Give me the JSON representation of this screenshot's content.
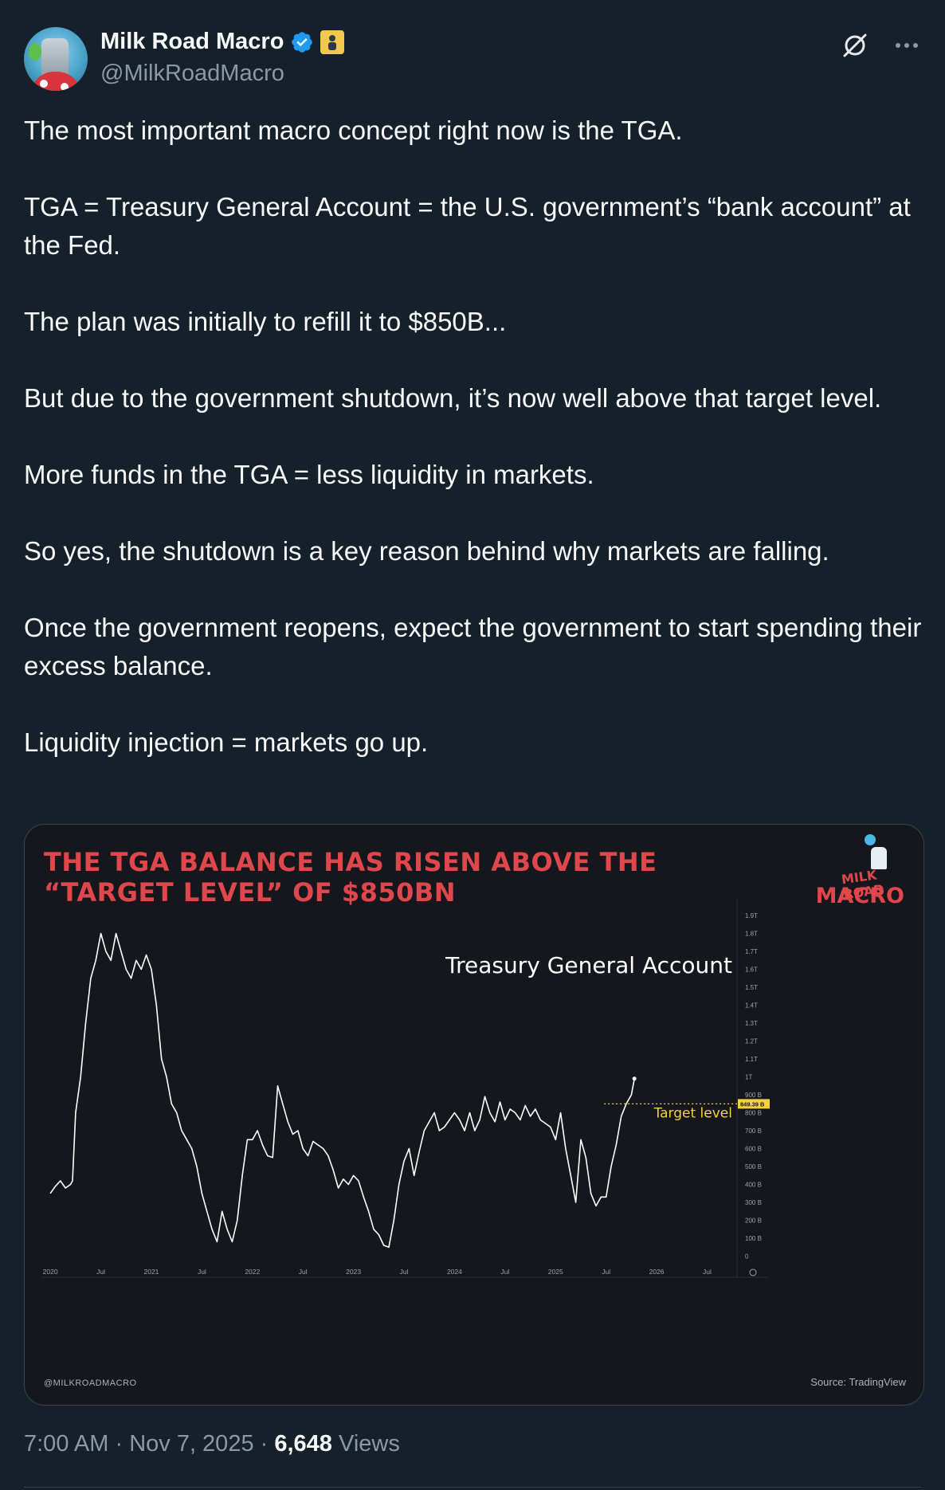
{
  "author": {
    "name": "Milk Road Macro",
    "handle": "@MilkRoadMacro"
  },
  "icons": {
    "verified": "verified-badge-icon",
    "affiliate": "affiliate-badge-icon",
    "grok": "grok-icon",
    "more": "more-icon"
  },
  "tweet": {
    "paragraphs": [
      "The most important macro concept right now is the TGA.",
      "TGA = Treasury General Account = the U.S. government’s “bank account” at the Fed.",
      "The plan was initially to refill it to $850B...",
      "But due to the government shutdown, it’s now well above that target level.",
      "More funds in the TGA = less liquidity in markets.",
      "So yes, the shutdown is a key reason behind why markets are falling.",
      "Once the government reopens, expect the government to start spending their excess balance.",
      "Liquidity injection = markets go up."
    ]
  },
  "media": {
    "logo_line1": "MILK ROAD",
    "logo_line2": "MACRO",
    "watermark": "@MILKROADMACRO",
    "source": "Source: TradingView"
  },
  "chart_data": {
    "type": "line",
    "title": "THE TGA BALANCE HAS RISEN ABOVE THE “TARGET LEVEL” OF $850BN",
    "series": [
      {
        "name": "Treasury General Account",
        "color": "#ffffff",
        "points": [
          [
            2020.0,
            350
          ],
          [
            2020.05,
            390
          ],
          [
            2020.1,
            420
          ],
          [
            2020.15,
            380
          ],
          [
            2020.2,
            400
          ],
          [
            2020.22,
            420
          ],
          [
            2020.25,
            800
          ],
          [
            2020.3,
            1000
          ],
          [
            2020.35,
            1300
          ],
          [
            2020.4,
            1550
          ],
          [
            2020.45,
            1650
          ],
          [
            2020.5,
            1800
          ],
          [
            2020.55,
            1700
          ],
          [
            2020.6,
            1650
          ],
          [
            2020.65,
            1800
          ],
          [
            2020.7,
            1700
          ],
          [
            2020.75,
            1600
          ],
          [
            2020.8,
            1550
          ],
          [
            2020.85,
            1650
          ],
          [
            2020.9,
            1600
          ],
          [
            2020.95,
            1680
          ],
          [
            2021.0,
            1600
          ],
          [
            2021.05,
            1400
          ],
          [
            2021.1,
            1100
          ],
          [
            2021.15,
            1000
          ],
          [
            2021.2,
            850
          ],
          [
            2021.25,
            800
          ],
          [
            2021.3,
            700
          ],
          [
            2021.35,
            650
          ],
          [
            2021.4,
            600
          ],
          [
            2021.45,
            500
          ],
          [
            2021.5,
            350
          ],
          [
            2021.55,
            250
          ],
          [
            2021.6,
            150
          ],
          [
            2021.65,
            80
          ],
          [
            2021.7,
            250
          ],
          [
            2021.75,
            150
          ],
          [
            2021.8,
            80
          ],
          [
            2021.85,
            200
          ],
          [
            2021.9,
            450
          ],
          [
            2021.95,
            650
          ],
          [
            2022.0,
            650
          ],
          [
            2022.05,
            700
          ],
          [
            2022.1,
            620
          ],
          [
            2022.15,
            560
          ],
          [
            2022.2,
            550
          ],
          [
            2022.25,
            950
          ],
          [
            2022.3,
            850
          ],
          [
            2022.35,
            750
          ],
          [
            2022.4,
            680
          ],
          [
            2022.45,
            700
          ],
          [
            2022.5,
            600
          ],
          [
            2022.55,
            560
          ],
          [
            2022.6,
            640
          ],
          [
            2022.65,
            620
          ],
          [
            2022.7,
            600
          ],
          [
            2022.75,
            560
          ],
          [
            2022.8,
            480
          ],
          [
            2022.85,
            380
          ],
          [
            2022.9,
            430
          ],
          [
            2022.95,
            400
          ],
          [
            2023.0,
            450
          ],
          [
            2023.05,
            420
          ],
          [
            2023.1,
            330
          ],
          [
            2023.15,
            250
          ],
          [
            2023.2,
            150
          ],
          [
            2023.25,
            120
          ],
          [
            2023.3,
            60
          ],
          [
            2023.35,
            50
          ],
          [
            2023.4,
            200
          ],
          [
            2023.45,
            400
          ],
          [
            2023.5,
            530
          ],
          [
            2023.55,
            600
          ],
          [
            2023.6,
            450
          ],
          [
            2023.65,
            580
          ],
          [
            2023.7,
            700
          ],
          [
            2023.75,
            750
          ],
          [
            2023.8,
            800
          ],
          [
            2023.85,
            700
          ],
          [
            2023.9,
            720
          ],
          [
            2024.0,
            800
          ],
          [
            2024.05,
            760
          ],
          [
            2024.1,
            700
          ],
          [
            2024.15,
            800
          ],
          [
            2024.2,
            700
          ],
          [
            2024.25,
            760
          ],
          [
            2024.3,
            890
          ],
          [
            2024.35,
            800
          ],
          [
            2024.4,
            750
          ],
          [
            2024.45,
            860
          ],
          [
            2024.5,
            760
          ],
          [
            2024.55,
            820
          ],
          [
            2024.6,
            800
          ],
          [
            2024.65,
            760
          ],
          [
            2024.7,
            840
          ],
          [
            2024.75,
            780
          ],
          [
            2024.8,
            820
          ],
          [
            2024.85,
            760
          ],
          [
            2024.9,
            740
          ],
          [
            2024.95,
            720
          ],
          [
            2025.0,
            650
          ],
          [
            2025.05,
            800
          ],
          [
            2025.1,
            600
          ],
          [
            2025.15,
            450
          ],
          [
            2025.2,
            300
          ],
          [
            2025.25,
            650
          ],
          [
            2025.3,
            550
          ],
          [
            2025.35,
            350
          ],
          [
            2025.4,
            280
          ],
          [
            2025.45,
            330
          ],
          [
            2025.5,
            330
          ],
          [
            2025.55,
            500
          ],
          [
            2025.6,
            620
          ],
          [
            2025.65,
            780
          ],
          [
            2025.7,
            850
          ],
          [
            2025.75,
            900
          ],
          [
            2025.78,
            990
          ]
        ]
      }
    ],
    "annotations": {
      "series_label": "Treasury General Account",
      "target_label": "Target level",
      "target_value": 849.39,
      "target_value_label": "849.39 B"
    },
    "x_ticks": [
      "2020",
      "Jul",
      "2021",
      "Jul",
      "2022",
      "Jul",
      "2023",
      "Jul",
      "2024",
      "Jul",
      "2025",
      "Jul",
      "2026",
      "Jul"
    ],
    "x_tick_values": [
      2020.0,
      2020.5,
      2021.0,
      2021.5,
      2022.0,
      2022.5,
      2023.0,
      2023.5,
      2024.0,
      2024.5,
      2025.0,
      2025.5,
      2026.0,
      2026.5
    ],
    "y_ticks": [
      "1.9T",
      "1.8T",
      "1.7T",
      "1.6T",
      "1.5T",
      "1.4T",
      "1.3T",
      "1.2T",
      "1.1T",
      "1T",
      "900 B",
      "800 B",
      "700 B",
      "600 B",
      "500 B",
      "400 B",
      "300 B",
      "200 B",
      "100 B",
      "0"
    ],
    "y_tick_values": [
      1900,
      1800,
      1700,
      1600,
      1500,
      1400,
      1300,
      1200,
      1100,
      1000,
      900,
      800,
      700,
      600,
      500,
      400,
      300,
      200,
      100,
      0
    ],
    "xlim": [
      2019.92,
      2026.78
    ],
    "ylim": [
      -20,
      1980
    ],
    "y_unit": "billions USD",
    "colors": {
      "title": "#e0474c",
      "target": "#f2d43a",
      "line": "#ffffff",
      "background": "#15171c"
    }
  },
  "meta": {
    "time": "7:00 AM",
    "separator": " · ",
    "date": "Nov 7, 2025",
    "views_count": "6,648",
    "views_label": " Views"
  }
}
